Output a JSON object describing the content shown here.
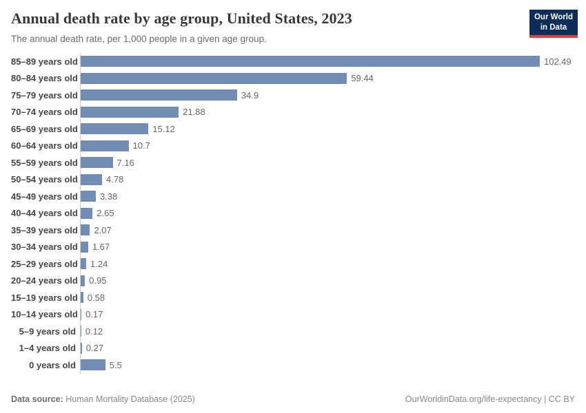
{
  "header": {
    "title": "Annual death rate by age group, United States, 2023",
    "subtitle": "The annual death rate, per 1,000 people in a given age group.",
    "logo_line1": "Our World",
    "logo_line2": "in Data"
  },
  "chart_data": {
    "type": "bar",
    "orientation": "horizontal",
    "title": "Annual death rate by age group, United States, 2023",
    "xlabel": "",
    "ylabel": "",
    "xlim": [
      0,
      102.49
    ],
    "grid": false,
    "bar_color": "#738cb4",
    "categories": [
      "85–89 years old",
      "80–84 years old",
      "75–79 years old",
      "70–74 years old",
      "65–69 years old",
      "60–64 years old",
      "55–59 years old",
      "50–54 years old",
      "45–49 years old",
      "40–44 years old",
      "35–39 years old",
      "30–34 years old",
      "25–29 years old",
      "20–24 years old",
      "15–19 years old",
      "10–14 years old",
      "5–9 years old",
      "1–4 years old",
      "0 years old"
    ],
    "values": [
      102.49,
      59.44,
      34.9,
      21.88,
      15.12,
      10.7,
      7.16,
      4.78,
      3.38,
      2.65,
      2.07,
      1.67,
      1.24,
      0.95,
      0.58,
      0.17,
      0.12,
      0.27,
      5.5
    ],
    "value_labels": [
      "102.49",
      "59.44",
      "34.9",
      "21.88",
      "15.12",
      "10.7",
      "7.16",
      "4.78",
      "3.38",
      "2.65",
      "2.07",
      "1.67",
      "1.24",
      "0.95",
      "0.58",
      "0.17",
      "0.12",
      "0.27",
      "5.5"
    ]
  },
  "footer": {
    "datasource_label": "Data source:",
    "datasource_value": "Human Mortality Database (2025)",
    "link_text": "OurWorldinData.org/life-expectancy",
    "license_text": "CC BY"
  },
  "colors": {
    "bar": "#738cb4",
    "axis_line": "#cccccc",
    "logo_bg": "#0d2e5a",
    "logo_stripe": "#dc3e42"
  }
}
